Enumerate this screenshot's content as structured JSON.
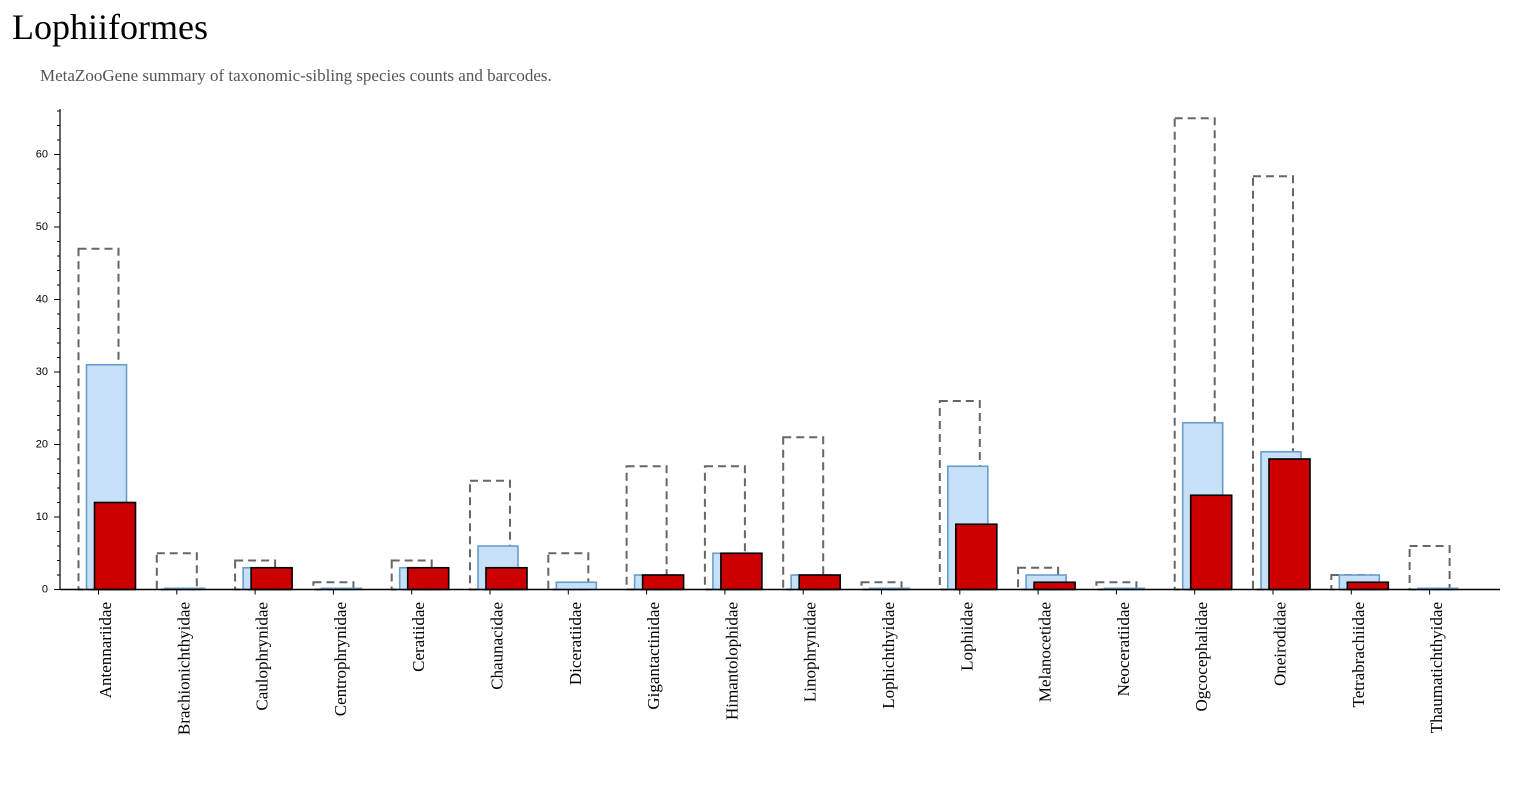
{
  "page": {
    "title": "Lophiiformes",
    "subtitle": "MetaZooGene summary of taxonomic-sibling species counts and barcodes."
  },
  "colors": {
    "outline": "#666666",
    "species_fill": "#c6e0f8",
    "species_stroke": "#6a9ccc",
    "barcode_fill": "#cc0000",
    "barcode_stroke": "#000000"
  },
  "chart_data": {
    "type": "bar",
    "title": "",
    "xlabel": "",
    "ylabel": "",
    "ylim": [
      0,
      66
    ],
    "yticks": [
      0,
      10,
      20,
      30,
      40,
      50,
      60
    ],
    "grid": false,
    "categories": [
      "Antennariidae",
      "Brachionichthyidae",
      "Caulophrynidae",
      "Centrophrynidae",
      "Ceratiidae",
      "Chaunacidae",
      "Diceratiidae",
      "Gigantactinidae",
      "Himantolophidae",
      "Linophrynidae",
      "Lophichthyidae",
      "Lophiidae",
      "Melanocetidae",
      "Neoceratiidae",
      "Ogcocephalidae",
      "Oneirodidae",
      "Tetrabrachiidae",
      "Thaumatichthyidae"
    ],
    "series": [
      {
        "values": [
          47,
          5,
          4,
          1,
          4,
          15,
          5,
          17,
          17,
          21,
          1,
          26,
          3,
          1,
          65,
          57,
          2,
          6
        ]
      },
      {
        "values": [
          31,
          0,
          3,
          0,
          3,
          6,
          1,
          2,
          5,
          2,
          0,
          17,
          2,
          0,
          23,
          19,
          2,
          0
        ]
      },
      {
        "values": [
          12,
          0,
          3,
          0,
          3,
          3,
          0,
          2,
          5,
          2,
          0,
          9,
          1,
          0,
          13,
          18,
          1,
          0
        ]
      }
    ]
  }
}
